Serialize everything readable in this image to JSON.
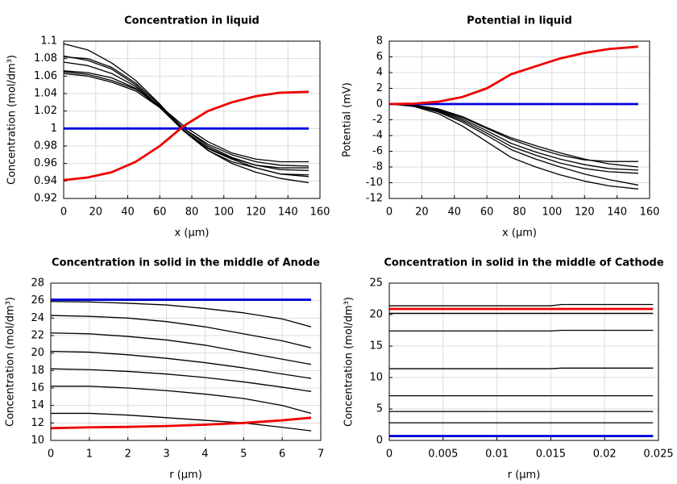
{
  "chart_data": [
    {
      "type": "line",
      "title": "Concentration in liquid",
      "x_label": "x (µm)",
      "y_label": "Concentration (mol/dm³)",
      "x": [
        0,
        15,
        30,
        45,
        60,
        75,
        90,
        105,
        120,
        135,
        153
      ],
      "series": [
        {
          "color": "#000000",
          "values": [
            1.097,
            1.09,
            1.075,
            1.055,
            1.028,
            0.998,
            0.975,
            0.96,
            0.95,
            0.943,
            0.938
          ]
        },
        {
          "color": "#000000",
          "values": [
            1.083,
            1.078,
            1.068,
            1.05,
            1.025,
            0.997,
            0.977,
            0.965,
            0.955,
            0.948,
            0.945
          ]
        },
        {
          "color": "#000000",
          "values": [
            1.082,
            1.08,
            1.07,
            1.052,
            1.027,
            1.0,
            0.98,
            0.967,
            0.958,
            0.953,
            0.952
          ]
        },
        {
          "color": "#000000",
          "values": [
            1.076,
            1.072,
            1.063,
            1.048,
            1.025,
            0.998,
            0.978,
            0.966,
            0.958,
            0.955,
            0.955
          ]
        },
        {
          "color": "#000000",
          "values": [
            1.066,
            1.064,
            1.058,
            1.046,
            1.024,
            1.0,
            0.982,
            0.97,
            0.962,
            0.958,
            0.957
          ]
        },
        {
          "color": "#000000",
          "values": [
            1.065,
            1.062,
            1.055,
            1.045,
            1.026,
            1.003,
            0.985,
            0.972,
            0.965,
            0.962,
            0.962
          ]
        },
        {
          "color": "#000000",
          "values": [
            1.063,
            1.06,
            1.053,
            1.043,
            1.024,
            0.997,
            0.975,
            0.962,
            0.955,
            0.948,
            0.947
          ]
        },
        {
          "color": "#0000dd",
          "values": [
            1,
            1,
            1,
            1,
            1,
            1,
            1,
            1,
            1,
            1,
            1
          ]
        },
        {
          "color": "#ee0000",
          "values": [
            0.941,
            0.944,
            0.95,
            0.962,
            0.98,
            1.003,
            1.02,
            1.03,
            1.037,
            1.041,
            1.042
          ]
        }
      ],
      "xlim": [
        0,
        160
      ],
      "xticks": [
        0,
        20,
        40,
        60,
        80,
        100,
        120,
        140,
        160
      ],
      "ylim": [
        0.92,
        1.1
      ],
      "yticks": [
        0.92,
        0.94,
        0.96,
        0.98,
        1,
        1.02,
        1.04,
        1.06,
        1.08,
        1.1
      ],
      "grid": true
    },
    {
      "type": "line",
      "title": "Potential in liquid",
      "x_label": "x (µm)",
      "y_label": "Potential (mV)",
      "x": [
        0,
        15,
        30,
        45,
        60,
        75,
        90,
        105,
        120,
        135,
        153
      ],
      "series": [
        {
          "color": "#000000",
          "values": [
            0,
            -0.3,
            -1.2,
            -2.8,
            -4.8,
            -6.8,
            -8.0,
            -9.0,
            -9.8,
            -10.4,
            -10.8
          ]
        },
        {
          "color": "#000000",
          "values": [
            0,
            -0.2,
            -1.0,
            -2.3,
            -4.0,
            -5.8,
            -7.0,
            -8.0,
            -8.9,
            -9.6,
            -10.3
          ]
        },
        {
          "color": "#000000",
          "values": [
            0,
            -0.2,
            -0.9,
            -2.1,
            -3.7,
            -5.4,
            -6.5,
            -7.5,
            -8.2,
            -8.6,
            -8.8
          ]
        },
        {
          "color": "#000000",
          "values": [
            0,
            -0.15,
            -0.8,
            -1.9,
            -3.4,
            -5.0,
            -6.1,
            -7.0,
            -7.7,
            -8.2,
            -8.4
          ]
        },
        {
          "color": "#000000",
          "values": [
            0,
            -0.1,
            -0.7,
            -1.7,
            -3.1,
            -4.5,
            -5.6,
            -6.5,
            -7.1,
            -7.3,
            -7.3
          ]
        },
        {
          "color": "#000000",
          "values": [
            0,
            -0.1,
            -0.6,
            -1.6,
            -3.0,
            -4.3,
            -5.3,
            -6.2,
            -7.0,
            -7.6,
            -8.0
          ]
        },
        {
          "color": "#0000dd",
          "values": [
            0,
            0,
            0,
            0,
            0,
            0,
            0,
            0,
            0,
            0,
            0
          ]
        },
        {
          "color": "#ee0000",
          "values": [
            0,
            0.05,
            0.3,
            0.9,
            2.0,
            3.8,
            4.8,
            5.8,
            6.5,
            7.0,
            7.3
          ]
        }
      ],
      "xlim": [
        0,
        160
      ],
      "xticks": [
        0,
        20,
        40,
        60,
        80,
        100,
        120,
        140,
        160
      ],
      "ylim": [
        -12,
        8
      ],
      "yticks": [
        -12,
        -10,
        -8,
        -6,
        -4,
        -2,
        0,
        2,
        4,
        6,
        8
      ],
      "grid": true
    },
    {
      "type": "line",
      "title": "Concentration in solid in the middle of Anode",
      "x_label": "r (µm)",
      "y_label": "Concentration (mol/dm³)",
      "x": [
        0,
        1,
        2,
        3,
        4,
        5,
        6,
        6.75
      ],
      "series": [
        {
          "color": "#000000",
          "values": [
            25.9,
            25.85,
            25.7,
            25.5,
            25.1,
            24.6,
            23.9,
            23.0
          ]
        },
        {
          "color": "#000000",
          "values": [
            24.3,
            24.2,
            24.0,
            23.6,
            23.0,
            22.2,
            21.4,
            20.6
          ]
        },
        {
          "color": "#000000",
          "values": [
            22.3,
            22.2,
            21.9,
            21.5,
            20.9,
            20.1,
            19.3,
            18.7
          ]
        },
        {
          "color": "#000000",
          "values": [
            20.2,
            20.1,
            19.8,
            19.4,
            18.9,
            18.3,
            17.6,
            17.1
          ]
        },
        {
          "color": "#000000",
          "values": [
            18.2,
            18.1,
            17.9,
            17.6,
            17.2,
            16.7,
            16.1,
            15.6
          ]
        },
        {
          "color": "#000000",
          "values": [
            16.2,
            16.2,
            16.0,
            15.7,
            15.3,
            14.8,
            14.0,
            13.1
          ]
        },
        {
          "color": "#000000",
          "values": [
            13.1,
            13.1,
            12.9,
            12.6,
            12.3,
            12.0,
            11.5,
            11.1
          ]
        },
        {
          "color": "#0000dd",
          "values": [
            26.1,
            26.1,
            26.1,
            26.1,
            26.1,
            26.1,
            26.1,
            26.1
          ]
        },
        {
          "color": "#ee0000",
          "values": [
            11.4,
            11.5,
            11.55,
            11.65,
            11.8,
            12.0,
            12.3,
            12.6
          ]
        }
      ],
      "xlim": [
        0,
        7
      ],
      "xticks": [
        0,
        1,
        2,
        3,
        4,
        5,
        6,
        7
      ],
      "ylim": [
        10,
        28
      ],
      "yticks": [
        10,
        12,
        14,
        16,
        18,
        20,
        22,
        24,
        26,
        28
      ],
      "grid": true
    },
    {
      "type": "line",
      "title": "Concentration in solid in the middle of Cathode",
      "x_label": "r (µm)",
      "y_label": "Concentration (mol/dm³)",
      "x": [
        0,
        0.005,
        0.01,
        0.015,
        0.016,
        0.02,
        0.0245
      ],
      "series": [
        {
          "color": "#000000",
          "values": [
            21.4,
            21.4,
            21.4,
            21.4,
            21.6,
            21.6,
            21.6
          ]
        },
        {
          "color": "#000000",
          "values": [
            20.2,
            20.2,
            20.2,
            20.2,
            20.2,
            20.2,
            20.2
          ]
        },
        {
          "color": "#000000",
          "values": [
            17.4,
            17.4,
            17.4,
            17.4,
            17.5,
            17.5,
            17.5
          ]
        },
        {
          "color": "#000000",
          "values": [
            11.4,
            11.4,
            11.4,
            11.4,
            11.5,
            11.5,
            11.5
          ]
        },
        {
          "color": "#000000",
          "values": [
            7.1,
            7.1,
            7.1,
            7.1,
            7.1,
            7.1,
            7.1
          ]
        },
        {
          "color": "#000000",
          "values": [
            4.6,
            4.6,
            4.6,
            4.6,
            4.6,
            4.6,
            4.6
          ]
        },
        {
          "color": "#000000",
          "values": [
            2.8,
            2.8,
            2.8,
            2.8,
            2.8,
            2.8,
            2.8
          ]
        },
        {
          "color": "#0000dd",
          "values": [
            0.7,
            0.7,
            0.7,
            0.7,
            0.7,
            0.7,
            0.7
          ]
        },
        {
          "color": "#ee0000",
          "values": [
            20.9,
            20.9,
            20.9,
            20.9,
            20.9,
            20.9,
            20.9
          ]
        }
      ],
      "xlim": [
        0,
        0.025
      ],
      "xticks": [
        0,
        0.005,
        0.01,
        0.015,
        0.02,
        0.025
      ],
      "ylim": [
        0,
        25
      ],
      "yticks": [
        0,
        5,
        10,
        15,
        20,
        25
      ],
      "grid": true
    }
  ]
}
